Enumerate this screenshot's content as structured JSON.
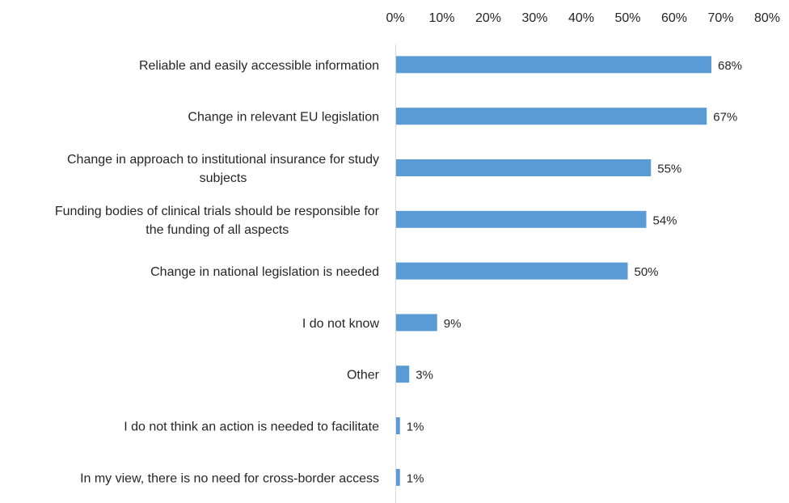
{
  "chart_data": {
    "type": "bar",
    "orientation": "horizontal",
    "title": "",
    "xlabel": "",
    "ylabel": "",
    "xlim": [
      0,
      80
    ],
    "x_ticks": [
      "0%",
      "10%",
      "20%",
      "30%",
      "40%",
      "50%",
      "60%",
      "70%",
      "80%"
    ],
    "x_axis_position": "top",
    "grid": false,
    "bar_color": "#5b9bd5",
    "categories": [
      [
        "Reliable and easily accessible information"
      ],
      [
        "Change in relevant EU legislation"
      ],
      [
        "Change in approach to institutional insurance for study",
        "subjects"
      ],
      [
        "Funding bodies of clinical trials should be responsible for",
        "the funding of all aspects"
      ],
      [
        "Change in national legislation is needed"
      ],
      [
        "I do not know"
      ],
      [
        "Other"
      ],
      [
        "I do not think an action is needed to facilitate"
      ],
      [
        "In my view, there is no need for cross-border access"
      ]
    ],
    "values": [
      68,
      67,
      55,
      54,
      50,
      9,
      3,
      1,
      1
    ],
    "data_labels": [
      "68%",
      "67%",
      "55%",
      "54%",
      "50%",
      "9%",
      "3%",
      "1%",
      "1%"
    ]
  }
}
